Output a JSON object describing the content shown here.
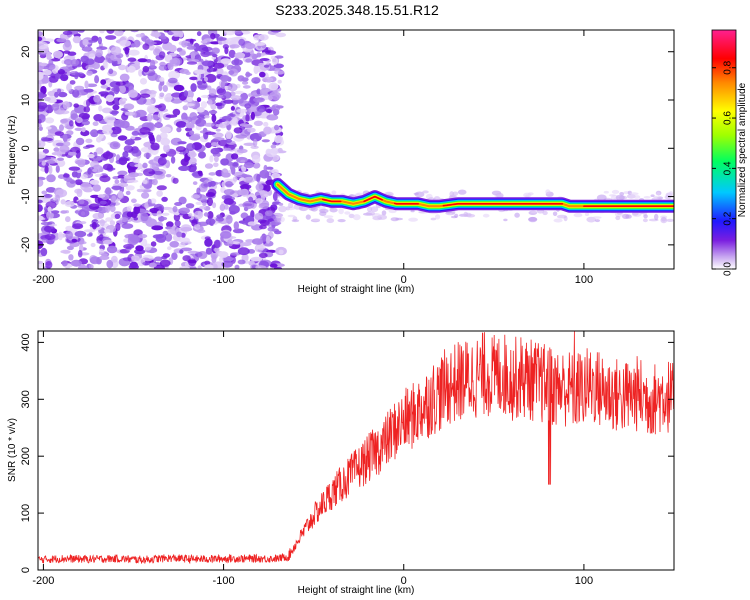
{
  "title": "S233.2025.348.15.51.R12",
  "chart_data": [
    {
      "type": "heatmap",
      "xlabel": "Height of straight line (km)",
      "ylabel": "Frequency (Hz)",
      "xlim": [
        -203,
        150
      ],
      "ylim": [
        -25,
        24.5
      ],
      "xticks": [
        -200,
        -100,
        0,
        100
      ],
      "yticks": [
        -20,
        -10,
        0,
        10,
        20
      ],
      "colorbar": {
        "label": "Normalized spectral amplitude",
        "range": [
          0,
          0.95
        ],
        "ticks": [
          "0.0",
          "0.2",
          "0.4",
          "0.6",
          "0.8"
        ],
        "tick_values": [
          0.0,
          0.2,
          0.4,
          0.6,
          0.8
        ],
        "colors": [
          "#ffffff",
          "#c8a8f0",
          "#7a1ee0",
          "#2018ff",
          "#00c8ff",
          "#00ff60",
          "#a0ff00",
          "#ffff00",
          "#ff8800",
          "#ff0000",
          "#ff2090"
        ]
      },
      "noise_region": {
        "x": [
          -203,
          -68
        ],
        "y": [
          -25,
          24.5
        ]
      },
      "ridge": {
        "x": [
          -70,
          -64,
          -58,
          -52,
          -46,
          -40,
          -34,
          -28,
          -22,
          -16,
          -10,
          -4,
          2,
          8,
          14,
          20,
          30,
          40,
          50,
          60,
          70,
          80,
          88,
          92,
          96,
          100,
          110,
          120,
          130,
          140,
          150
        ],
        "y": [
          -7.5,
          -9.5,
          -10.5,
          -11,
          -10.5,
          -11,
          -11,
          -11.5,
          -11,
          -10,
          -11,
          -11.5,
          -11.5,
          -11.5,
          -12,
          -12,
          -11.5,
          -11.5,
          -11.5,
          -11.5,
          -11.5,
          -11.5,
          -11.5,
          -12,
          -12,
          -12,
          -12,
          -12,
          -12,
          -12,
          -12
        ]
      }
    },
    {
      "type": "line",
      "xlabel": "Height of straight line (km)",
      "ylabel": "SNR (10 * v/v)",
      "xlim": [
        -203,
        150
      ],
      "ylim": [
        0,
        420
      ],
      "xticks": [
        -200,
        -100,
        0,
        100
      ],
      "yticks": [
        0,
        100,
        200,
        300,
        400
      ],
      "color": "#ee2222",
      "series": [
        {
          "x": [
            -203,
            -190,
            -175,
            -160,
            -145,
            -130,
            -115,
            -100,
            -85,
            -70,
            -64,
            -60,
            -55,
            -50,
            -45,
            -40,
            -35,
            -30,
            -25,
            -20,
            -15,
            -10,
            -5,
            0,
            5,
            10,
            15,
            20,
            25,
            30,
            35,
            40,
            45,
            50,
            55,
            60,
            65,
            70,
            75,
            80,
            85,
            90,
            95,
            100,
            105,
            110,
            115,
            120,
            125,
            130,
            135,
            140,
            145,
            150
          ],
          "y": [
            18,
            20,
            19,
            20,
            18,
            21,
            19,
            20,
            20,
            20,
            24,
            45,
            70,
            95,
            115,
            135,
            150,
            165,
            180,
            195,
            210,
            225,
            245,
            260,
            270,
            285,
            300,
            310,
            325,
            330,
            335,
            340,
            345,
            340,
            345,
            335,
            340,
            335,
            330,
            325,
            320,
            320,
            315,
            320,
            325,
            315,
            310,
            305,
            305,
            310,
            300,
            300,
            310,
            300
          ]
        }
      ]
    }
  ]
}
